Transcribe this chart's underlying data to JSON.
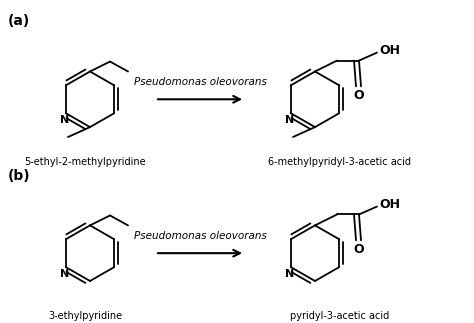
{
  "bg_color": "#ffffff",
  "line_color": "#000000",
  "label_a": "(a)",
  "label_b": "(b)",
  "enzyme_text": "Pseudomonas oleovorans",
  "compound1a": "5-ethyl-2-methylpyridine",
  "compound2a": "6-methylpyridyl-3-acetic acid",
  "compound1b": "3-ethylpyridine",
  "compound2b": "pyridyl-3-acetic acid",
  "figsize": [
    4.74,
    3.23
  ],
  "dpi": 100
}
